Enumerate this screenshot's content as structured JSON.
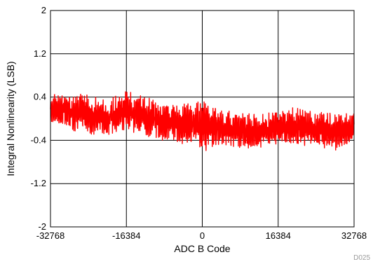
{
  "chart_data": {
    "type": "line",
    "title": "",
    "xlabel": "ADC B Code",
    "ylabel": "Integral Nonlinearity (LSB)",
    "xlim": [
      -32768,
      32768
    ],
    "ylim": [
      -2,
      2
    ],
    "xticks": [
      -32768,
      -16384,
      0,
      16384,
      32768
    ],
    "yticks": [
      2,
      1.2,
      0.4,
      -0.4,
      -1.2,
      -2
    ],
    "xtick_labels": [
      "-32768",
      "-16384",
      "0",
      "16384",
      "32768"
    ],
    "ytick_labels": [
      "2",
      "1.2",
      "0.4",
      "-0.4",
      "-1.2",
      "-2"
    ],
    "grid": true,
    "figure_id": "D025",
    "series": [
      {
        "color": "#ff0000",
        "x": [
          -32768,
          -28672,
          -24576,
          -20480,
          -16384,
          -12288,
          -8192,
          -4096,
          0,
          4096,
          8192,
          12288,
          16384,
          20480,
          24576,
          28672,
          32768
        ],
        "upper": [
          0.45,
          0.5,
          0.45,
          0.35,
          0.55,
          0.42,
          0.32,
          0.28,
          0.35,
          0.18,
          0.12,
          0.08,
          0.22,
          0.2,
          0.15,
          0.12,
          0.15
        ],
        "lower": [
          -0.1,
          -0.2,
          -0.3,
          -0.33,
          -0.2,
          -0.35,
          -0.42,
          -0.48,
          -0.62,
          -0.5,
          -0.55,
          -0.55,
          -0.5,
          -0.5,
          -0.55,
          -0.6,
          -0.5
        ]
      }
    ]
  }
}
